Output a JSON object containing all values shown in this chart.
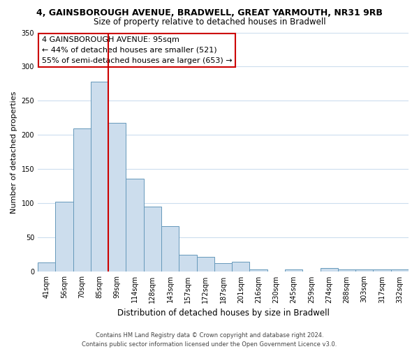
{
  "title": "4, GAINSBOROUGH AVENUE, BRADWELL, GREAT YARMOUTH, NR31 9RB",
  "subtitle": "Size of property relative to detached houses in Bradwell",
  "xlabel": "Distribution of detached houses by size in Bradwell",
  "ylabel": "Number of detached properties",
  "bar_labels": [
    "41sqm",
    "56sqm",
    "70sqm",
    "85sqm",
    "99sqm",
    "114sqm",
    "128sqm",
    "143sqm",
    "157sqm",
    "172sqm",
    "187sqm",
    "201sqm",
    "216sqm",
    "230sqm",
    "245sqm",
    "259sqm",
    "274sqm",
    "288sqm",
    "303sqm",
    "317sqm",
    "332sqm"
  ],
  "bar_values": [
    14,
    102,
    210,
    278,
    218,
    136,
    95,
    67,
    25,
    22,
    13,
    15,
    3,
    0,
    3,
    0,
    6,
    3,
    3,
    3,
    3
  ],
  "bar_color": "#ccdded",
  "bar_edge_color": "#6699bb",
  "vline_color": "#cc0000",
  "vline_x_index": 3.5,
  "ylim": [
    0,
    350
  ],
  "yticks": [
    0,
    50,
    100,
    150,
    200,
    250,
    300,
    350
  ],
  "annotation_title": "4 GAINSBOROUGH AVENUE: 95sqm",
  "annotation_line1": "← 44% of detached houses are smaller (521)",
  "annotation_line2": "55% of semi-detached houses are larger (653) →",
  "annotation_box_facecolor": "#ffffff",
  "annotation_box_edgecolor": "#cc0000",
  "footer1": "Contains HM Land Registry data © Crown copyright and database right 2024.",
  "footer2": "Contains public sector information licensed under the Open Government Licence v3.0.",
  "background_color": "#ffffff",
  "grid_color": "#ccddee",
  "title_fontsize": 9,
  "subtitle_fontsize": 8.5,
  "ylabel_fontsize": 8,
  "xlabel_fontsize": 8.5,
  "tick_fontsize": 7,
  "ann_fontsize": 8,
  "footer_fontsize": 6
}
